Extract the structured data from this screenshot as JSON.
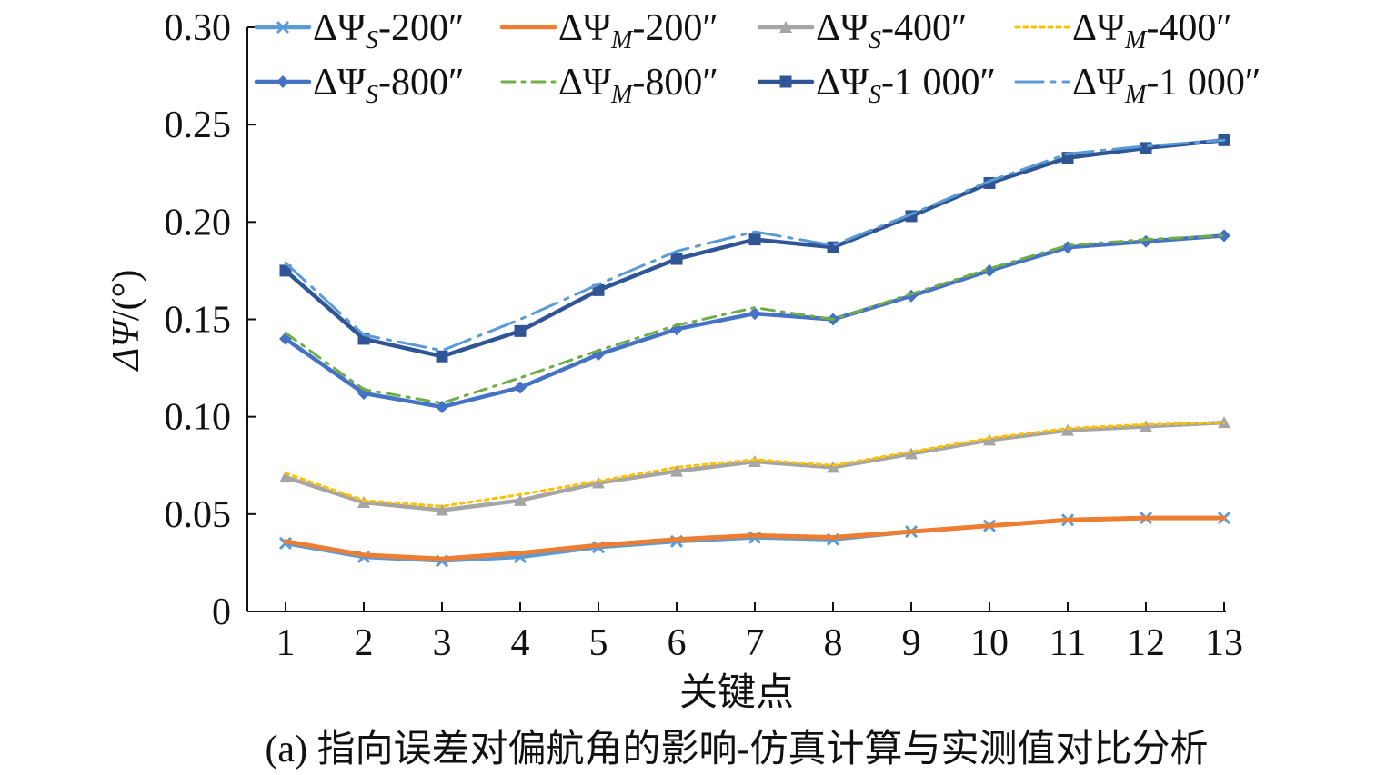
{
  "chart_data": {
    "type": "line",
    "caption": "(a) 指向误差对偏航角的影响-仿真计算与实测值对比分析",
    "xlabel": "关键点",
    "ylabel": "ΔΨ/(°)",
    "ylabel_symbol": "ΔΨ",
    "ylabel_unit": "/(°)",
    "x": [
      1,
      2,
      3,
      4,
      5,
      6,
      7,
      8,
      9,
      10,
      11,
      12,
      13
    ],
    "x_tick_labels": [
      "1",
      "2",
      "3",
      "4",
      "5",
      "6",
      "7",
      "8",
      "9",
      "10",
      "11",
      "12",
      "13"
    ],
    "ylim": [
      0,
      0.3
    ],
    "y_ticks": [
      0,
      0.05,
      0.1,
      0.15,
      0.2,
      0.25,
      0.3
    ],
    "y_tick_labels": [
      "0",
      "0.05",
      "0.10",
      "0.15",
      "0.20",
      "0.25",
      "0.30"
    ],
    "grid": false,
    "legend_position": "top",
    "series": [
      {
        "name": "ΔΨS-200″",
        "label_base": "ΔΨ",
        "label_sub": "S",
        "label_suffix": "-200″",
        "color": "#5b9bd5",
        "style": "solid",
        "marker": "x",
        "values": [
          0.035,
          0.028,
          0.026,
          0.028,
          0.033,
          0.036,
          0.038,
          0.037,
          0.041,
          0.044,
          0.047,
          0.048,
          0.048
        ]
      },
      {
        "name": "ΔΨM-200″",
        "label_base": "ΔΨ",
        "label_sub": "M",
        "label_suffix": "-200″",
        "color": "#ed7d31",
        "style": "solid",
        "marker": "none",
        "values": [
          0.036,
          0.029,
          0.027,
          0.03,
          0.034,
          0.037,
          0.039,
          0.038,
          0.041,
          0.044,
          0.047,
          0.048,
          0.048
        ]
      },
      {
        "name": "ΔΨS-400″",
        "label_base": "ΔΨ",
        "label_sub": "S",
        "label_suffix": "-400″",
        "color": "#a5a5a5",
        "style": "solid",
        "marker": "triangle",
        "values": [
          0.069,
          0.056,
          0.052,
          0.057,
          0.066,
          0.072,
          0.077,
          0.074,
          0.081,
          0.088,
          0.093,
          0.095,
          0.097
        ]
      },
      {
        "name": "ΔΨM-400″",
        "label_base": "ΔΨ",
        "label_sub": "M",
        "label_suffix": "-400″",
        "color": "#ffc000",
        "style": "dotted",
        "marker": "none",
        "values": [
          0.071,
          0.057,
          0.054,
          0.06,
          0.067,
          0.074,
          0.078,
          0.075,
          0.082,
          0.089,
          0.094,
          0.096,
          0.097
        ]
      },
      {
        "name": "ΔΨS-800″",
        "label_base": "ΔΨ",
        "label_sub": "S",
        "label_suffix": "-800″",
        "color": "#4472c4",
        "style": "solid",
        "marker": "diamond",
        "values": [
          0.14,
          0.112,
          0.105,
          0.115,
          0.132,
          0.145,
          0.153,
          0.15,
          0.162,
          0.175,
          0.187,
          0.19,
          0.193
        ]
      },
      {
        "name": "ΔΨM-800″",
        "label_base": "ΔΨ",
        "label_sub": "M",
        "label_suffix": "-800″",
        "color": "#70ad47",
        "style": "dashdot",
        "marker": "none",
        "values": [
          0.143,
          0.114,
          0.107,
          0.12,
          0.134,
          0.147,
          0.156,
          0.15,
          0.163,
          0.176,
          0.188,
          0.191,
          0.193
        ]
      },
      {
        "name": "ΔΨS-1 000″",
        "label_base": "ΔΨ",
        "label_sub": "S",
        "label_suffix": "-1 000″",
        "color": "#2f5597",
        "style": "solid",
        "marker": "square",
        "values": [
          0.175,
          0.14,
          0.131,
          0.144,
          0.165,
          0.181,
          0.191,
          0.187,
          0.203,
          0.22,
          0.233,
          0.238,
          0.242
        ]
      },
      {
        "name": "ΔΨM-1 000″",
        "label_base": "ΔΨ",
        "label_sub": "M",
        "label_suffix": "-1 000″",
        "color": "#5b9bd5",
        "style": "longdashdot",
        "marker": "none",
        "values": [
          0.179,
          0.142,
          0.134,
          0.15,
          0.168,
          0.185,
          0.195,
          0.188,
          0.204,
          0.221,
          0.235,
          0.239,
          0.242
        ]
      }
    ]
  }
}
